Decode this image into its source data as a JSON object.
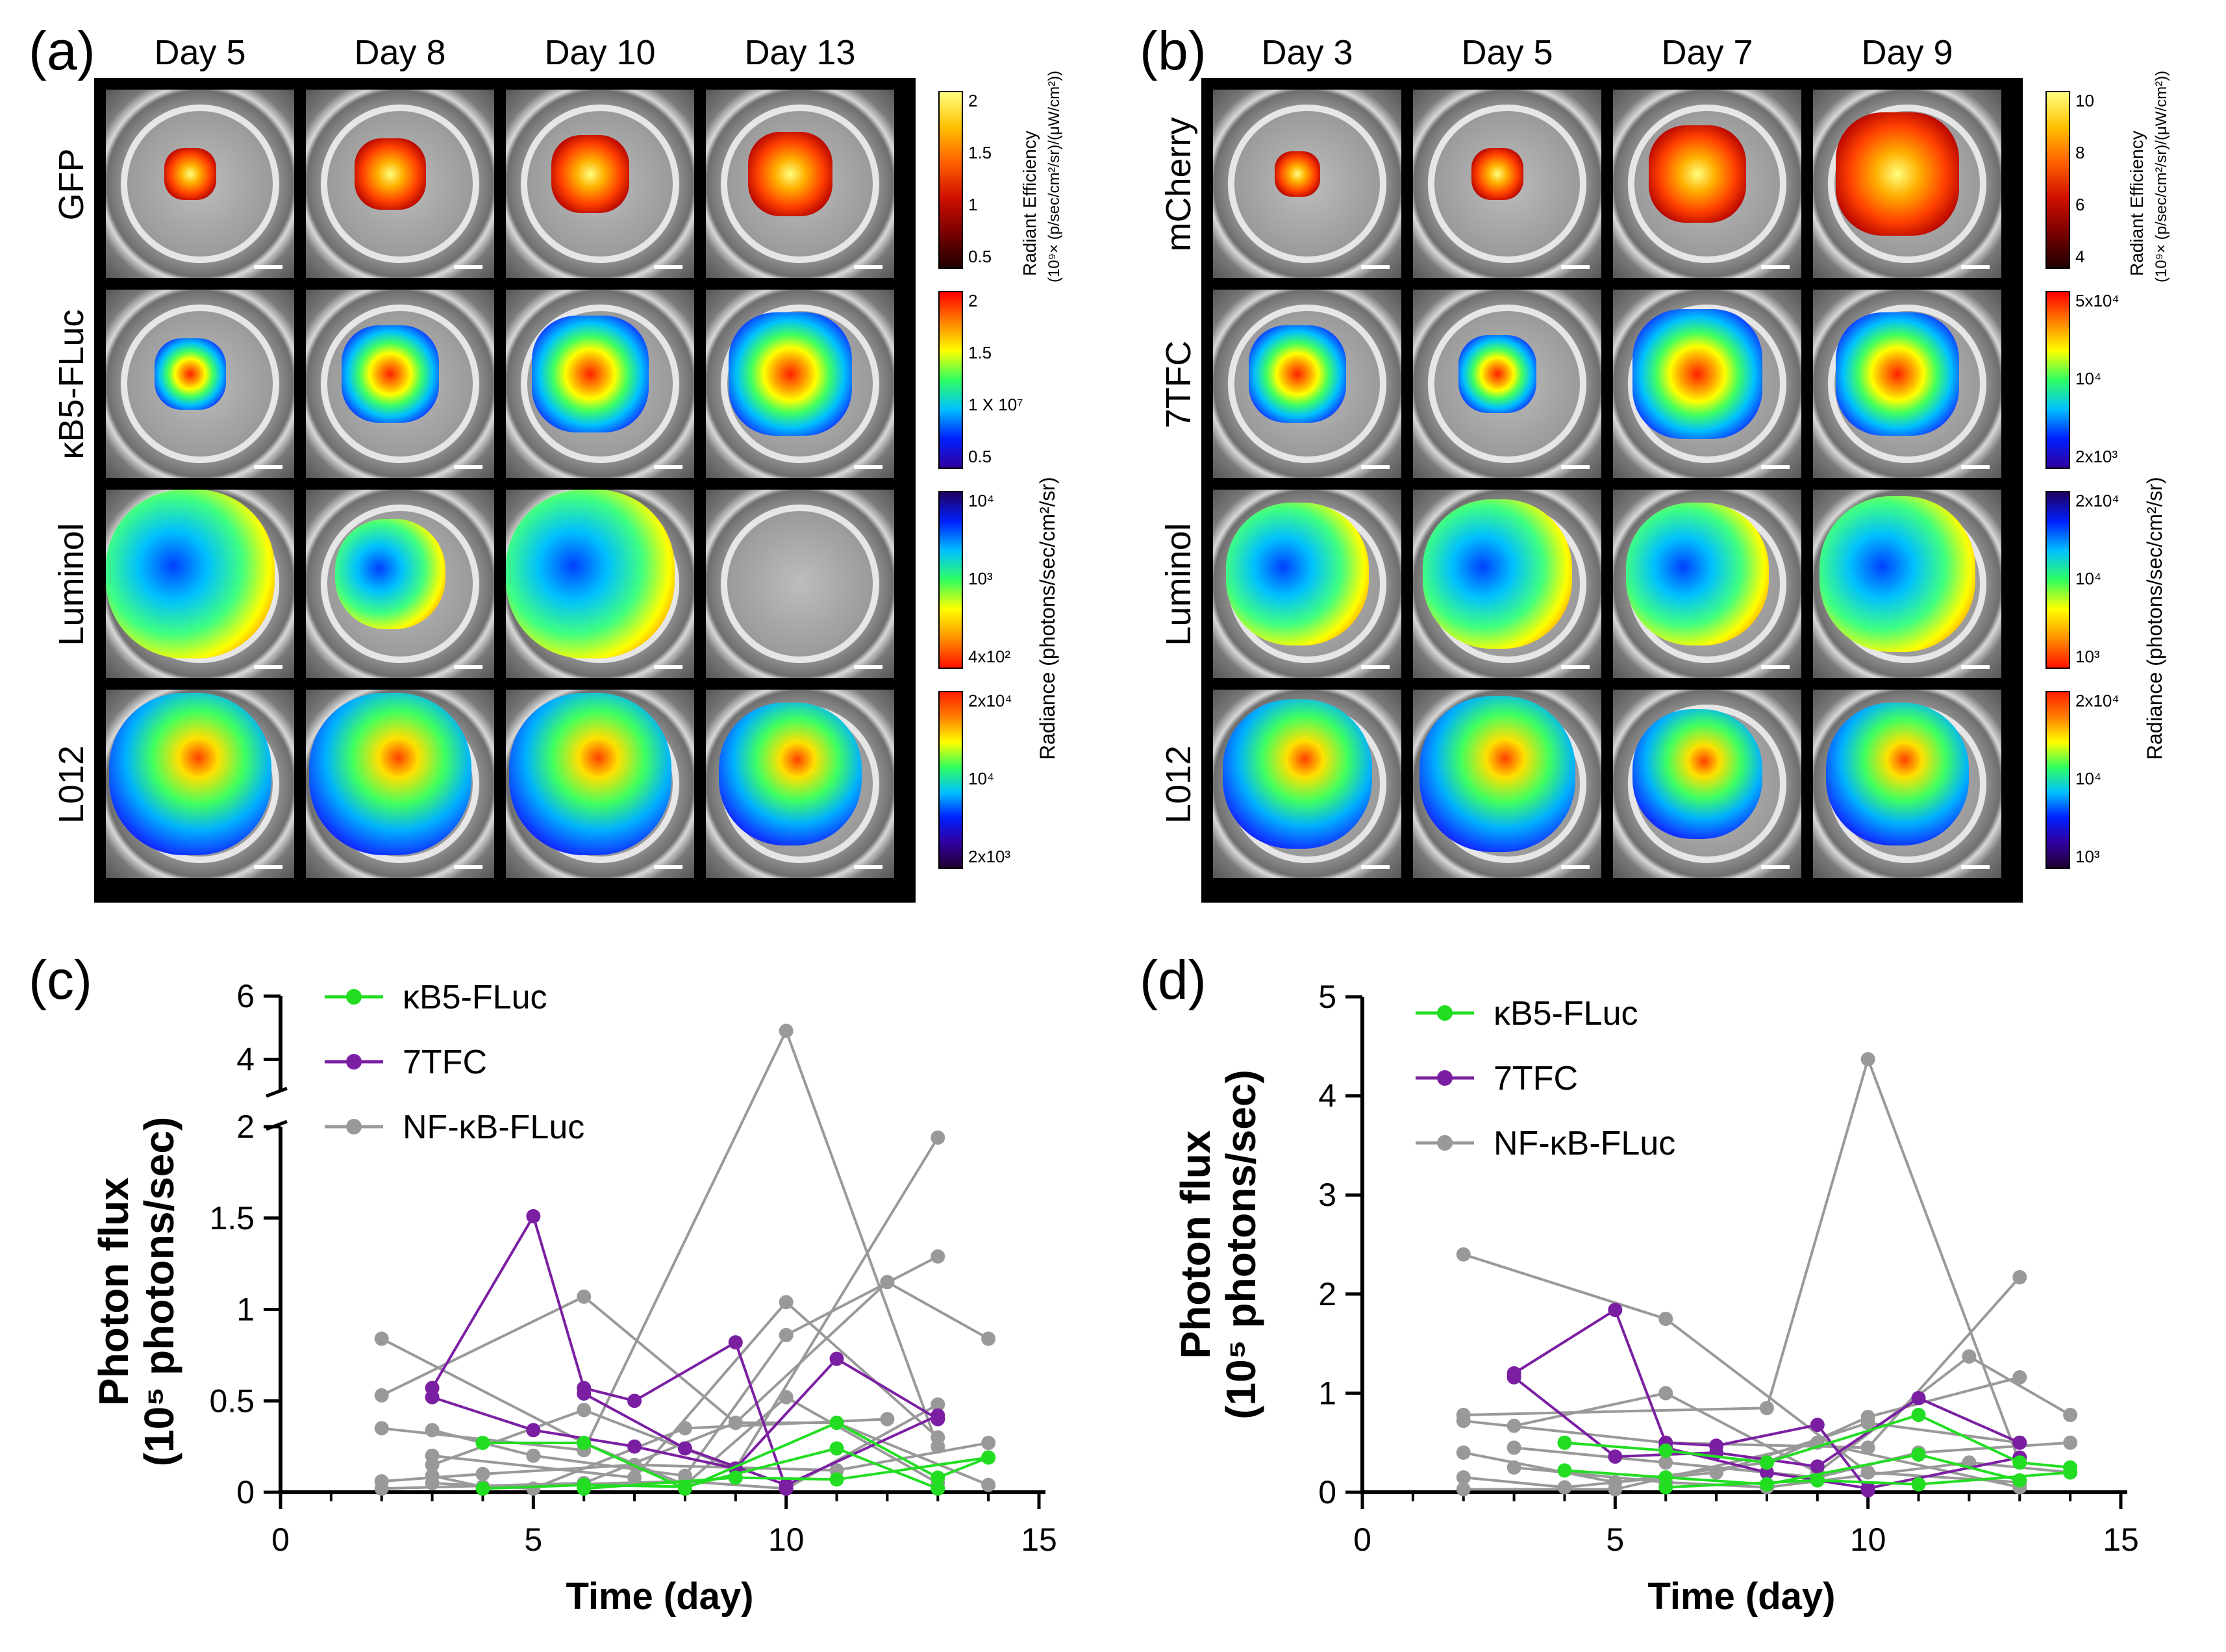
{
  "panel_a": {
    "label": "(a)",
    "days": [
      "Day 5",
      "Day 8",
      "Day 10",
      "Day 13"
    ],
    "rows": [
      "GFP",
      "κB5-FLuc",
      "Luminol",
      "L012"
    ],
    "colorbars": [
      {
        "ticks": [
          "2",
          "1.5",
          "1",
          "0.5"
        ],
        "title": "Radiant Efficiency",
        "subtitle": "(10⁹× (p/sec/cm²/sr)/(μW/cm²))"
      },
      {
        "ticks": [
          "2",
          "1.5",
          "1  X 10⁷",
          "0.5"
        ]
      },
      {
        "ticks": [
          "10⁴",
          "10³",
          "4x10²"
        ]
      },
      {
        "ticks": [
          "2x10⁴",
          "10⁴",
          "2x10³"
        ]
      }
    ],
    "radiance_title": "Radiance (photons/sec/cm²/sr)"
  },
  "panel_b": {
    "label": "(b)",
    "days": [
      "Day 3",
      "Day 5",
      "Day 7",
      "Day 9"
    ],
    "rows": [
      "mCherry",
      "7TFC",
      "Luminol",
      "L012"
    ],
    "colorbars": [
      {
        "ticks": [
          "10",
          "8",
          "6",
          "4"
        ],
        "title": "Radiant Efficiency",
        "subtitle": "(10⁹× (p/sec/cm²/sr)/(μW/cm²))"
      },
      {
        "ticks": [
          "5x10⁴",
          "10⁴",
          "2x10³"
        ]
      },
      {
        "ticks": [
          "2x10⁴",
          "10⁴",
          "10³"
        ]
      },
      {
        "ticks": [
          "2x10⁴",
          "10⁴",
          "10³"
        ]
      }
    ],
    "radiance_title": "Radiance (photons/sec/cm²/sr)"
  },
  "chart_data": [
    {
      "id": "c",
      "label": "(c)",
      "type": "line",
      "xlabel": "Time (day)",
      "ylabel_line1": "Photon flux",
      "ylabel_line2": "(10⁵ photons/sec)",
      "xlim": [
        0,
        15
      ],
      "xticks": [
        "0",
        "5",
        "10",
        "15"
      ],
      "yticks_lower": [
        "0",
        "0.5",
        "1",
        "1.5",
        "2"
      ],
      "yticks_upper": [
        "4",
        "6"
      ],
      "ylim": [
        0,
        6
      ],
      "axis_break": [
        2,
        3
      ],
      "legend": [
        "κB5-FLuc",
        "7TFC",
        "NF-κB-FLuc"
      ],
      "colors": {
        "κB5-FLuc": "#22dd22",
        "7TFC": "#7b1fa2",
        "NF-κB-FLuc": "#999999"
      },
      "series": [
        {
          "group": "NF-κB-FLuc",
          "x": [
            2,
            6,
            8,
            10,
            13
          ],
          "y": [
            0.84,
            0.27,
            0.04,
            0.52,
            0.05
          ]
        },
        {
          "group": "NF-κB-FLuc",
          "x": [
            2,
            6,
            9,
            12,
            14
          ],
          "y": [
            0.53,
            1.07,
            0.38,
            1.15,
            0.84
          ]
        },
        {
          "group": "NF-κB-FLuc",
          "x": [
            2,
            6,
            10,
            13
          ],
          "y": [
            0.35,
            0.23,
            4.9,
            0.25
          ]
        },
        {
          "group": "NF-κB-FLuc",
          "x": [
            3,
            6,
            9,
            13
          ],
          "y": [
            0.15,
            0.45,
            0.13,
            1.94
          ]
        },
        {
          "group": "NF-κB-FLuc",
          "x": [
            3,
            5,
            8,
            10,
            13
          ],
          "y": [
            0.34,
            0.2,
            0.09,
            0.86,
            1.29
          ]
        },
        {
          "group": "NF-κB-FLuc",
          "x": [
            3,
            7,
            10,
            13
          ],
          "y": [
            0.2,
            0.08,
            1.04,
            0.3
          ]
        },
        {
          "group": "NF-κB-FLuc",
          "x": [
            2,
            4,
            7,
            11,
            14
          ],
          "y": [
            0.06,
            0.1,
            0.15,
            0.12,
            0.27
          ]
        },
        {
          "group": "NF-κB-FLuc",
          "x": [
            3,
            5,
            8,
            12
          ],
          "y": [
            0.05,
            0.02,
            0.35,
            0.4
          ]
        },
        {
          "group": "NF-κB-FLuc",
          "x": [
            2,
            6,
            9,
            11,
            14
          ],
          "y": [
            0.02,
            0.05,
            0.38,
            0.38,
            0.04
          ]
        },
        {
          "group": "NF-κB-FLuc",
          "x": [
            3,
            4,
            8,
            10,
            13
          ],
          "y": [
            0.09,
            0.03,
            0.06,
            0.02,
            0.48
          ]
        },
        {
          "group": "κB5-FLuc",
          "x": [
            4,
            6,
            8,
            11,
            13,
            14
          ],
          "y": [
            0.27,
            0.27,
            0.02,
            0.38,
            0.08,
            0.19
          ]
        },
        {
          "group": "κB5-FLuc",
          "x": [
            4,
            6,
            8,
            11,
            13
          ],
          "y": [
            0.02,
            0.04,
            0.03,
            0.24,
            0.02
          ]
        },
        {
          "group": "κB5-FLuc",
          "x": [
            6,
            9,
            11,
            14
          ],
          "y": [
            0.02,
            0.08,
            0.07,
            0.19
          ]
        },
        {
          "group": "7TFC",
          "x": [
            3,
            5,
            6,
            7,
            9,
            10
          ],
          "y": [
            0.57,
            1.51,
            0.57,
            0.5,
            0.82,
            0.02
          ]
        },
        {
          "group": "7TFC",
          "x": [
            3,
            5,
            7,
            9,
            11,
            13
          ],
          "y": [
            0.52,
            0.34,
            0.25,
            0.13,
            0.73,
            0.4
          ]
        },
        {
          "group": "7TFC",
          "x": [
            6,
            8,
            10,
            13
          ],
          "y": [
            0.54,
            0.24,
            0.04,
            0.42
          ]
        }
      ]
    },
    {
      "id": "d",
      "label": "(d)",
      "type": "line",
      "xlabel": "Time (day)",
      "ylabel_line1": "Photon flux",
      "ylabel_line2": "(10⁵ photons/sec)",
      "xlim": [
        0,
        15
      ],
      "ylim": [
        0,
        5
      ],
      "xticks": [
        "0",
        "5",
        "10",
        "15"
      ],
      "yticks": [
        "0",
        "1",
        "2",
        "3",
        "4",
        "5"
      ],
      "legend": [
        "κB5-FLuc",
        "7TFC",
        "NF-κB-FLuc"
      ],
      "colors": {
        "κB5-FLuc": "#22dd22",
        "7TFC": "#7b1fa2",
        "NF-κB-FLuc": "#999999"
      },
      "series": [
        {
          "group": "NF-κB-FLuc",
          "x": [
            2,
            6,
            10,
            13
          ],
          "y": [
            2.4,
            1.75,
            0.2,
            0.1
          ]
        },
        {
          "group": "NF-κB-FLuc",
          "x": [
            2,
            8,
            10,
            13
          ],
          "y": [
            0.78,
            0.85,
            4.37,
            0.3
          ]
        },
        {
          "group": "NF-κB-FLuc",
          "x": [
            2,
            6,
            10,
            13
          ],
          "y": [
            0.72,
            0.5,
            0.45,
            2.17
          ]
        },
        {
          "group": "NF-κB-FLuc",
          "x": [
            3,
            6,
            9,
            12,
            14
          ],
          "y": [
            0.67,
            1.0,
            0.2,
            1.37,
            0.78
          ]
        },
        {
          "group": "NF-κB-FLuc",
          "x": [
            2,
            5,
            8,
            10,
            13
          ],
          "y": [
            0.4,
            0.1,
            0.3,
            0.76,
            1.16
          ]
        },
        {
          "group": "NF-κB-FLuc",
          "x": [
            3,
            6,
            9,
            11,
            14
          ],
          "y": [
            0.45,
            0.3,
            0.15,
            0.4,
            0.5
          ]
        },
        {
          "group": "NF-κB-FLuc",
          "x": [
            2,
            4,
            7,
            10,
            13
          ],
          "y": [
            0.15,
            0.05,
            0.2,
            0.7,
            0.5
          ]
        },
        {
          "group": "NF-κB-FLuc",
          "x": [
            3,
            6,
            8,
            12,
            14
          ],
          "y": [
            0.25,
            0.1,
            0.05,
            0.3,
            0.2
          ]
        },
        {
          "group": "NF-κB-FLuc",
          "x": [
            2,
            5,
            9,
            13
          ],
          "y": [
            0.03,
            0.03,
            0.5,
            0.05
          ]
        },
        {
          "group": "κB5-FLuc",
          "x": [
            4,
            6,
            8,
            11,
            13,
            14
          ],
          "y": [
            0.5,
            0.42,
            0.3,
            0.78,
            0.3,
            0.25
          ]
        },
        {
          "group": "κB5-FLuc",
          "x": [
            4,
            6,
            8,
            11,
            13
          ],
          "y": [
            0.22,
            0.15,
            0.08,
            0.38,
            0.12
          ]
        },
        {
          "group": "κB5-FLuc",
          "x": [
            6,
            9,
            11,
            14
          ],
          "y": [
            0.05,
            0.12,
            0.08,
            0.2
          ]
        },
        {
          "group": "7TFC",
          "x": [
            3,
            5,
            6,
            7,
            9,
            10
          ],
          "y": [
            1.2,
            1.84,
            0.5,
            0.47,
            0.68,
            0.02
          ]
        },
        {
          "group": "7TFC",
          "x": [
            3,
            5,
            7,
            9,
            11,
            13
          ],
          "y": [
            1.16,
            0.36,
            0.4,
            0.26,
            0.95,
            0.5
          ]
        },
        {
          "group": "7TFC",
          "x": [
            6,
            8,
            10,
            13
          ],
          "y": [
            0.45,
            0.2,
            0.04,
            0.35
          ]
        }
      ]
    }
  ]
}
